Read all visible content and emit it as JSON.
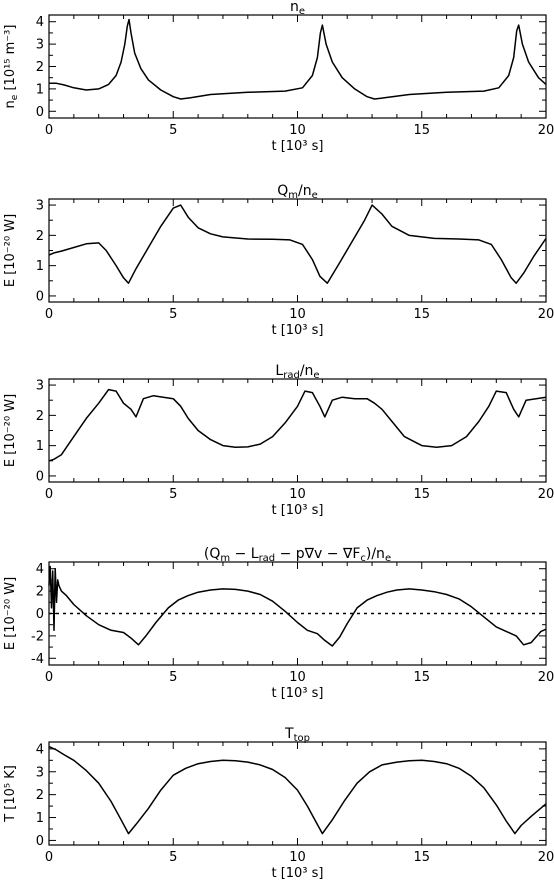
{
  "chart_data": [
    {
      "type": "line",
      "title_main": "n",
      "title_sub": "e",
      "title_tail": "",
      "xlabel": "t [10³ s]",
      "ylabel": "n",
      "ylabel_sub": "e",
      "ylabel_tail": " [10¹⁵ m⁻³]",
      "xlim": [
        0,
        20
      ],
      "ylim": [
        -0.3,
        4.3
      ],
      "xticks": [
        0,
        5,
        10,
        15,
        20
      ],
      "yticks": [
        0,
        1,
        2,
        3,
        4
      ],
      "zero_line": false,
      "series": [
        {
          "x": [
            0,
            0.3,
            0.6,
            1.0,
            1.5,
            2.0,
            2.4,
            2.7,
            2.9,
            3.05,
            3.15,
            3.22,
            3.3,
            3.45,
            3.7,
            4.0,
            4.5,
            5.0,
            5.3,
            5.7,
            6.5,
            8.0,
            9.5,
            10.2,
            10.6,
            10.8,
            10.92,
            11.0,
            11.15,
            11.4,
            11.8,
            12.3,
            12.8,
            13.1,
            13.5,
            14.5,
            16.0,
            17.5,
            18.1,
            18.5,
            18.7,
            18.82,
            18.9,
            19.05,
            19.3,
            19.7,
            20.0
          ],
          "y": [
            1.25,
            1.25,
            1.18,
            1.05,
            0.95,
            1.0,
            1.2,
            1.6,
            2.2,
            3.0,
            3.8,
            4.1,
            3.5,
            2.6,
            1.9,
            1.4,
            0.95,
            0.65,
            0.55,
            0.6,
            0.75,
            0.85,
            0.9,
            1.05,
            1.6,
            2.4,
            3.5,
            3.85,
            3.0,
            2.2,
            1.5,
            1.0,
            0.65,
            0.55,
            0.6,
            0.75,
            0.85,
            0.9,
            1.05,
            1.6,
            2.4,
            3.6,
            3.85,
            3.0,
            2.2,
            1.5,
            1.2
          ]
        }
      ]
    },
    {
      "type": "line",
      "title_main": "Q",
      "title_sub": "m",
      "title_tail": "/n",
      "title_sub2": "e",
      "xlabel": "t [10³ s]",
      "ylabel": "E [10⁻²⁰ W]",
      "xlim": [
        0,
        20
      ],
      "ylim": [
        -0.2,
        3.2
      ],
      "xticks": [
        0,
        5,
        10,
        15,
        20
      ],
      "yticks": [
        0,
        1,
        2,
        3
      ],
      "zero_line": false,
      "series": [
        {
          "x": [
            0,
            0.2,
            0.5,
            1.0,
            1.5,
            2.0,
            2.3,
            2.7,
            3.0,
            3.2,
            3.5,
            4.0,
            4.5,
            5.0,
            5.3,
            5.6,
            6.0,
            6.5,
            7.0,
            8.0,
            9.0,
            9.7,
            10.2,
            10.6,
            10.9,
            11.2,
            11.7,
            12.2,
            12.7,
            13.0,
            13.4,
            13.8,
            14.5,
            15.5,
            16.5,
            17.3,
            17.8,
            18.2,
            18.6,
            18.8,
            19.1,
            19.5,
            20.0
          ],
          "y": [
            1.35,
            1.42,
            1.48,
            1.6,
            1.72,
            1.75,
            1.5,
            1.0,
            0.6,
            0.42,
            0.9,
            1.6,
            2.3,
            2.9,
            3.0,
            2.6,
            2.25,
            2.05,
            1.95,
            1.88,
            1.87,
            1.85,
            1.7,
            1.2,
            0.65,
            0.42,
            1.1,
            1.8,
            2.5,
            3.0,
            2.7,
            2.3,
            2.0,
            1.9,
            1.88,
            1.85,
            1.7,
            1.2,
            0.6,
            0.42,
            0.75,
            1.3,
            1.9
          ]
        }
      ]
    },
    {
      "type": "line",
      "title_main": "L",
      "title_sub": "rad",
      "title_tail": "/n",
      "title_sub2": "e",
      "xlabel": "t [10³ s]",
      "ylabel": "E [10⁻²⁰ W]",
      "xlim": [
        0,
        20
      ],
      "ylim": [
        -0.2,
        3.2
      ],
      "xticks": [
        0,
        5,
        10,
        15,
        20
      ],
      "yticks": [
        0,
        1,
        2,
        3
      ],
      "zero_line": false,
      "series": [
        {
          "x": [
            0,
            0.2,
            0.5,
            1.0,
            1.5,
            2.0,
            2.4,
            2.7,
            3.0,
            3.3,
            3.5,
            3.8,
            4.2,
            4.6,
            5.0,
            5.3,
            5.6,
            6.0,
            6.5,
            7.0,
            7.5,
            8.0,
            8.5,
            9.0,
            9.5,
            10.0,
            10.3,
            10.6,
            10.9,
            11.1,
            11.4,
            11.8,
            12.3,
            12.8,
            13.1,
            13.4,
            13.8,
            14.3,
            15.0,
            15.6,
            16.2,
            16.8,
            17.3,
            17.7,
            18.0,
            18.4,
            18.7,
            18.9,
            19.2,
            19.6,
            20.0
          ],
          "y": [
            0.5,
            0.55,
            0.7,
            1.3,
            1.9,
            2.4,
            2.85,
            2.8,
            2.4,
            2.2,
            1.95,
            2.55,
            2.65,
            2.6,
            2.55,
            2.3,
            1.9,
            1.5,
            1.2,
            1.0,
            0.95,
            0.96,
            1.05,
            1.3,
            1.75,
            2.3,
            2.8,
            2.75,
            2.3,
            1.95,
            2.5,
            2.6,
            2.55,
            2.55,
            2.4,
            2.2,
            1.8,
            1.3,
            1.0,
            0.95,
            1.0,
            1.3,
            1.8,
            2.3,
            2.8,
            2.75,
            2.2,
            1.95,
            2.5,
            2.55,
            2.6
          ]
        }
      ]
    },
    {
      "type": "line",
      "title_raw": "(Q",
      "xlabel": "t [10³ s]",
      "ylabel": "E [10⁻²⁰ W]",
      "xlim": [
        0,
        20
      ],
      "ylim": [
        -4.6,
        4.6
      ],
      "xticks": [
        0,
        5,
        10,
        15,
        20
      ],
      "yticks": [
        -4,
        -2,
        0,
        2,
        4
      ],
      "zero_line": true,
      "series": [
        {
          "x": [
            0,
            0.05,
            0.1,
            0.15,
            0.2,
            0.25,
            0.3,
            0.35,
            0.4,
            0.5,
            0.7,
            1.0,
            1.5,
            2.0,
            2.5,
            3.0,
            3.3,
            3.6,
            3.9,
            4.3,
            4.8,
            5.2,
            5.6,
            6.0,
            6.5,
            7.0,
            7.5,
            8.0,
            8.5,
            9.0,
            9.5,
            10.0,
            10.4,
            10.8,
            11.1,
            11.4,
            11.7,
            12.0,
            12.4,
            12.8,
            13.2,
            13.6,
            14.0,
            14.5,
            15.0,
            15.5,
            16.0,
            16.5,
            17.0,
            17.5,
            18.0,
            18.4,
            18.8,
            19.1,
            19.4,
            19.8,
            20.0
          ],
          "y": [
            2.5,
            4.2,
            0.5,
            3.8,
            -1.5,
            4.0,
            1.0,
            3.0,
            2.5,
            2.0,
            1.6,
            0.8,
            -0.2,
            -1.0,
            -1.5,
            -1.7,
            -2.2,
            -2.8,
            -2.0,
            -0.8,
            0.5,
            1.2,
            1.6,
            1.9,
            2.1,
            2.2,
            2.15,
            2.0,
            1.7,
            1.1,
            0.2,
            -0.8,
            -1.5,
            -1.8,
            -2.4,
            -2.9,
            -2.1,
            -0.9,
            0.5,
            1.2,
            1.6,
            1.9,
            2.1,
            2.2,
            2.1,
            1.95,
            1.7,
            1.3,
            0.6,
            -0.3,
            -1.2,
            -1.6,
            -2.0,
            -2.8,
            -2.6,
            -1.6,
            -1.4
          ]
        }
      ]
    },
    {
      "type": "line",
      "title_main": "T",
      "title_sub": "top",
      "title_tail": "",
      "xlabel": "t [10³ s]",
      "ylabel": "T [10⁵ K]",
      "xlim": [
        0,
        20
      ],
      "ylim": [
        -0.2,
        4.3
      ],
      "xticks": [
        0,
        5,
        10,
        15,
        20
      ],
      "yticks": [
        0,
        1,
        2,
        3,
        4
      ],
      "zero_line": false,
      "series": [
        {
          "x": [
            0,
            0.3,
            0.6,
            1.0,
            1.5,
            2.0,
            2.5,
            2.9,
            3.2,
            3.5,
            4.0,
            4.5,
            5.0,
            5.5,
            6.0,
            6.5,
            7.0,
            7.5,
            8.0,
            8.5,
            9.0,
            9.5,
            10.0,
            10.4,
            10.75,
            11.0,
            11.4,
            11.9,
            12.4,
            12.9,
            13.4,
            14.0,
            14.5,
            15.0,
            15.5,
            16.0,
            16.5,
            17.0,
            17.5,
            18.0,
            18.4,
            18.75,
            19.0,
            19.4,
            20.0
          ],
          "y": [
            4.1,
            3.95,
            3.75,
            3.5,
            3.05,
            2.5,
            1.7,
            0.9,
            0.3,
            0.7,
            1.4,
            2.2,
            2.85,
            3.15,
            3.35,
            3.45,
            3.5,
            3.48,
            3.42,
            3.3,
            3.1,
            2.75,
            2.2,
            1.5,
            0.8,
            0.3,
            0.9,
            1.75,
            2.5,
            3.0,
            3.3,
            3.42,
            3.48,
            3.5,
            3.45,
            3.35,
            3.15,
            2.8,
            2.3,
            1.55,
            0.85,
            0.3,
            0.65,
            1.05,
            1.6
          ]
        }
      ]
    }
  ]
}
